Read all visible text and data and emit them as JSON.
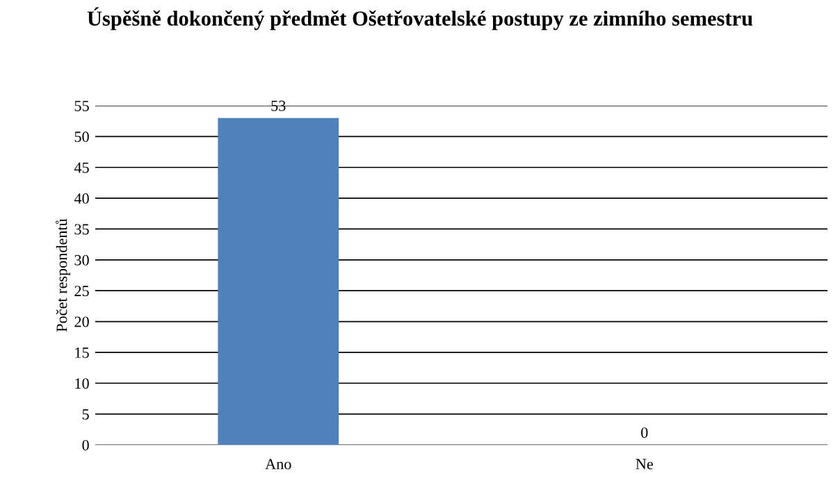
{
  "chart_data": {
    "type": "bar",
    "title": "Úspěšně dokončený předmět Ošetřovatelské postupy ze zimního semestru",
    "ylabel": "Počet respondentů",
    "categories": [
      "Ano",
      "Ne"
    ],
    "values": [
      53,
      0
    ],
    "color": "#4f81bd",
    "ylim": [
      0,
      55
    ],
    "yticks": [
      0,
      5,
      10,
      15,
      20,
      25,
      30,
      35,
      40,
      45,
      50,
      55
    ],
    "grid": "y",
    "data_labels": true
  }
}
